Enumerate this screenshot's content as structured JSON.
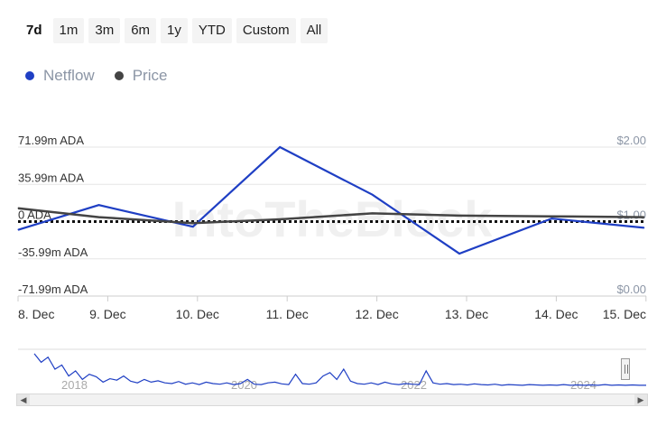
{
  "range_buttons": [
    "7d",
    "1m",
    "3m",
    "6m",
    "1y",
    "YTD",
    "Custom",
    "All"
  ],
  "active_range": "7d",
  "legend": [
    {
      "label": "Netflow",
      "color": "#1f3fc4"
    },
    {
      "label": "Price",
      "color": "#444444"
    }
  ],
  "watermark": "IntoTheBlock",
  "chart_data": {
    "type": "line",
    "x": [
      "8. Dec",
      "9. Dec",
      "10. Dec",
      "11. Dec",
      "12. Dec",
      "13. Dec",
      "14. Dec",
      "15. Dec"
    ],
    "left_axis": {
      "ticks": [
        "71.99m ADA",
        "35.99m ADA",
        "0 ADA",
        "-35.99m ADA",
        "-71.99m ADA"
      ],
      "range": [
        -71.99,
        71.99
      ],
      "unit": "m ADA"
    },
    "right_axis": {
      "ticks": [
        "$2.00",
        "$1.00",
        "$0.00"
      ],
      "range": [
        0,
        2
      ]
    },
    "series": [
      {
        "name": "Netflow",
        "color": "#1f3fc4",
        "axis": "left",
        "x": [
          0,
          0.9,
          1.95,
          2.92,
          3.95,
          4.92,
          5.95,
          6.98
        ],
        "values": [
          -8,
          16,
          -5,
          72,
          26,
          -31,
          3,
          -6
        ]
      },
      {
        "name": "Price",
        "color": "#444444",
        "axis": "right",
        "x": [
          0,
          0.9,
          1.95,
          2.92,
          3.95,
          4.92,
          5.95,
          6.98
        ],
        "values": [
          1.18,
          1.06,
          0.98,
          1.03,
          1.11,
          1.08,
          1.07,
          1.06
        ]
      }
    ],
    "grid": true,
    "navigator": {
      "year_labels": [
        "2018",
        "2020",
        "2022",
        "2024"
      ],
      "series_color": "#1f3fc4",
      "values": [
        0.95,
        0.7,
        0.85,
        0.5,
        0.62,
        0.3,
        0.45,
        0.2,
        0.35,
        0.28,
        0.12,
        0.22,
        0.18,
        0.3,
        0.15,
        0.1,
        0.2,
        0.12,
        0.16,
        0.1,
        0.08,
        0.14,
        0.06,
        0.1,
        0.05,
        0.12,
        0.08,
        0.06,
        0.1,
        0.05,
        0.08,
        0.2,
        0.06,
        0.05,
        0.1,
        0.12,
        0.07,
        0.05,
        0.35,
        0.08,
        0.06,
        0.1,
        0.3,
        0.4,
        0.2,
        0.5,
        0.15,
        0.08,
        0.06,
        0.1,
        0.05,
        0.12,
        0.07,
        0.05,
        0.08,
        0.06,
        0.05,
        0.45,
        0.1,
        0.06,
        0.08,
        0.05,
        0.06,
        0.04,
        0.07,
        0.05,
        0.04,
        0.06,
        0.03,
        0.05,
        0.04,
        0.03,
        0.05,
        0.04,
        0.03,
        0.04,
        0.03,
        0.05,
        0.03,
        0.04,
        0.03,
        0.04,
        0.03,
        0.05,
        0.03,
        0.04,
        0.03,
        0.04,
        0.03,
        0.03
      ]
    }
  }
}
